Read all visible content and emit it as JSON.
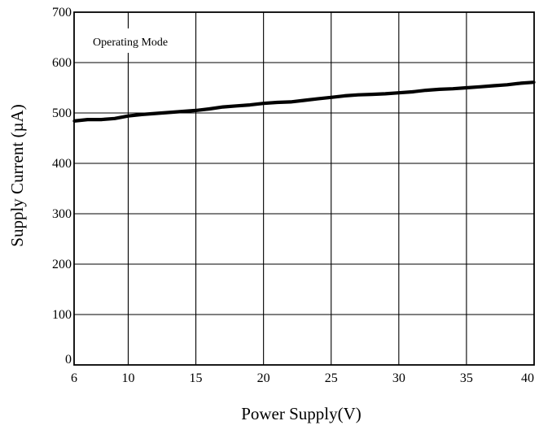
{
  "chart_data": {
    "type": "line",
    "title": "",
    "xlabel": "Power Supply(V)",
    "ylabel": "Supply Current (µA)",
    "xlim": [
      6,
      40
    ],
    "ylim": [
      0,
      700
    ],
    "xticks": [
      6,
      10,
      15,
      20,
      25,
      30,
      35,
      40
    ],
    "yticks": [
      0,
      100,
      200,
      300,
      400,
      500,
      600,
      700
    ],
    "x_tick_labels": [
      "6",
      "10",
      "15",
      "20",
      "25",
      "30",
      "35",
      "40"
    ],
    "y_tick_labels": [
      "0",
      "100",
      "200",
      "300",
      "400",
      "500",
      "600",
      "700"
    ],
    "grid": true,
    "annotation": "Operating Mode",
    "series": [
      {
        "x": [
          6,
          7,
          8,
          9,
          10,
          11,
          12,
          13,
          14,
          15,
          16,
          17,
          18,
          19,
          20,
          21,
          22,
          23,
          24,
          25,
          26,
          27,
          28,
          29,
          30,
          31,
          32,
          33,
          34,
          35,
          36,
          37,
          38,
          39,
          40
        ],
        "values": [
          484,
          487,
          487,
          489,
          494,
          497,
          499,
          501,
          503,
          505,
          508,
          512,
          514,
          516,
          519,
          521,
          522,
          525,
          528,
          531,
          534,
          536,
          537,
          538,
          540,
          542,
          545,
          547,
          548,
          550,
          552,
          554,
          556,
          559,
          561
        ],
        "color": "#000000"
      }
    ]
  }
}
